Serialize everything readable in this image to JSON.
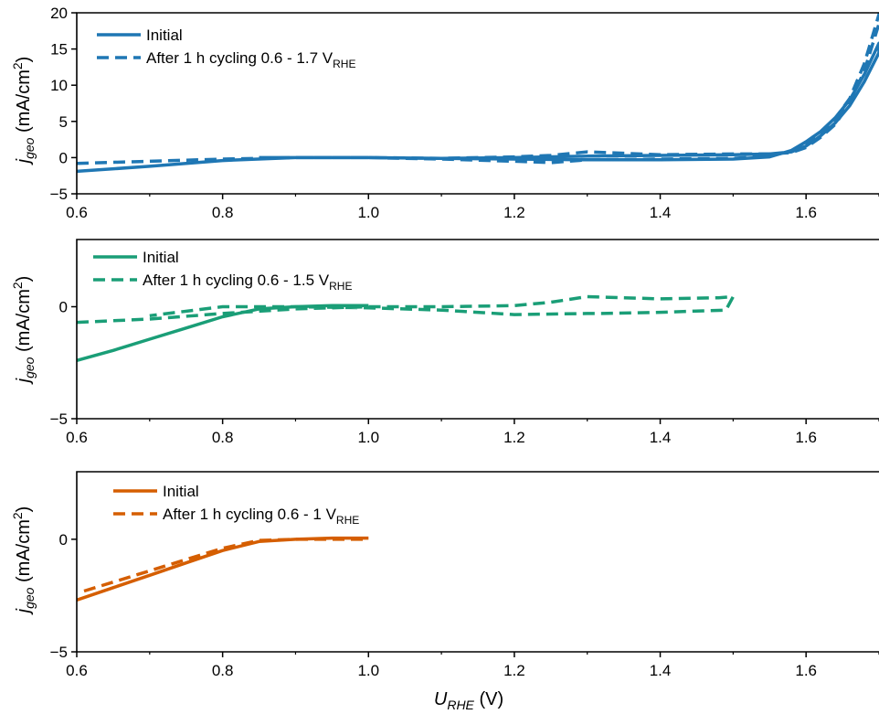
{
  "chart_data": [
    {
      "type": "line",
      "xlim": [
        0.6,
        1.7
      ],
      "ylim": [
        -5,
        20
      ],
      "x_ticks": [
        "0.6",
        "0.8",
        "1.0",
        "1.2",
        "1.4",
        "1.6"
      ],
      "y_ticks": [
        "20",
        "15",
        "10",
        "5",
        "0",
        "−5"
      ],
      "ylabel": {
        "main": "j",
        "sub": "geo",
        "unit": " (mA/cm",
        "sup": "2",
        "close": ")"
      },
      "legend_position": "top-left",
      "color": "#1f77b4",
      "series": [
        {
          "name": "Initial",
          "style": "solid",
          "x": [
            0.6,
            0.7,
            0.8,
            0.9,
            1.0,
            1.1,
            1.2,
            1.3,
            1.4,
            1.5,
            1.55,
            1.58,
            1.6,
            1.62,
            1.64,
            1.66,
            1.68,
            1.7,
            1.7,
            1.68,
            1.66,
            1.64,
            1.62,
            1.6,
            1.58,
            1.55,
            1.5,
            1.4,
            1.3,
            1.2,
            1.1,
            1.0,
            0.9,
            0.85
          ],
          "y": [
            -1.9,
            -1.2,
            -0.4,
            0.0,
            0.0,
            -0.1,
            -0.2,
            -0.3,
            -0.3,
            -0.2,
            0.1,
            1.0,
            2.2,
            3.6,
            5.5,
            8.0,
            11.5,
            15.8,
            14.5,
            10.5,
            7.2,
            4.8,
            3.0,
            1.6,
            0.8,
            0.5,
            0.4,
            0.3,
            0.2,
            0.0,
            -0.1,
            0.0,
            0.0,
            0.0
          ]
        },
        {
          "name": "After 1 h cycling 0.6 - 1.7 V",
          "name_sub": "RHE",
          "style": "dashed",
          "x": [
            0.6,
            0.7,
            0.8,
            0.9,
            1.0,
            1.1,
            1.2,
            1.25,
            1.3,
            1.4,
            1.5,
            1.55,
            1.58,
            1.6,
            1.62,
            1.64,
            1.66,
            1.68,
            1.7,
            1.7,
            1.68,
            1.66,
            1.64,
            1.62,
            1.6,
            1.58,
            1.55,
            1.5,
            1.4,
            1.3,
            1.25,
            1.2,
            1.1,
            1.0,
            0.9
          ],
          "y": [
            -0.8,
            -0.5,
            -0.2,
            0.0,
            0.0,
            -0.2,
            -0.5,
            -0.7,
            -0.3,
            -0.2,
            -0.1,
            0.2,
            0.9,
            2.0,
            3.4,
            5.4,
            8.2,
            13.0,
            19.8,
            18.5,
            12.0,
            7.6,
            4.6,
            2.8,
            1.4,
            0.7,
            0.5,
            0.5,
            0.4,
            0.8,
            0.3,
            0.1,
            -0.1,
            0.0,
            0.0
          ]
        }
      ]
    },
    {
      "type": "line",
      "xlim": [
        0.6,
        1.7
      ],
      "ylim": [
        -5,
        3
      ],
      "x_ticks": [
        "0.6",
        "0.8",
        "1.0",
        "1.2",
        "1.4",
        "1.6"
      ],
      "y_ticks": [
        "0",
        "−5"
      ],
      "ylabel": {
        "main": "j",
        "sub": "geo",
        "unit": " (mA/cm",
        "sup": "2",
        "close": ")"
      },
      "legend_position": "top-left",
      "color": "#1a9e77",
      "series": [
        {
          "name": "Initial",
          "style": "solid",
          "x": [
            0.6,
            0.65,
            0.7,
            0.75,
            0.8,
            0.85,
            0.9,
            0.95,
            1.0
          ],
          "y": [
            -2.4,
            -1.95,
            -1.45,
            -0.95,
            -0.45,
            -0.1,
            0.0,
            0.05,
            0.05
          ]
        },
        {
          "name": "After 1 h cycling 0.6 - 1.5 V",
          "name_sub": "RHE",
          "style": "dashed",
          "x": [
            0.6,
            0.7,
            0.8,
            0.9,
            1.0,
            1.1,
            1.2,
            1.25,
            1.3,
            1.4,
            1.48,
            1.5,
            1.49,
            1.4,
            1.32,
            1.3,
            1.2,
            1.1,
            1.0,
            0.9,
            0.8,
            0.7
          ],
          "y": [
            -0.7,
            -0.55,
            -0.3,
            -0.1,
            0.0,
            0.0,
            0.05,
            0.2,
            0.45,
            0.35,
            0.4,
            0.45,
            -0.15,
            -0.25,
            -0.3,
            -0.3,
            -0.35,
            -0.15,
            -0.05,
            0.0,
            0.0,
            -0.4
          ]
        }
      ]
    },
    {
      "type": "line",
      "xlim": [
        0.6,
        1.7
      ],
      "ylim": [
        -5,
        3
      ],
      "x_ticks": [
        "0.6",
        "0.8",
        "1.0",
        "1.2",
        "1.4",
        "1.6"
      ],
      "y_ticks": [
        "0",
        "−5"
      ],
      "ylabel": {
        "main": "j",
        "sub": "geo",
        "unit": " (mA/cm",
        "sup": "2",
        "close": ")"
      },
      "xlabel": {
        "main": "U",
        "sub": "RHE",
        "unit": " (V)"
      },
      "legend_position": "top-left",
      "color": "#d55e00",
      "series": [
        {
          "name": "Initial",
          "style": "solid",
          "x": [
            0.6,
            0.65,
            0.7,
            0.75,
            0.8,
            0.85,
            0.9,
            0.95,
            1.0
          ],
          "y": [
            -2.7,
            -2.15,
            -1.6,
            -1.05,
            -0.5,
            -0.1,
            0.0,
            0.05,
            0.05
          ]
        },
        {
          "name": "After 1 h cycling 0.6 - 1 V",
          "name_sub": "RHE",
          "style": "dashed",
          "x": [
            0.61,
            0.65,
            0.7,
            0.75,
            0.8,
            0.85,
            0.9,
            0.95,
            1.0
          ],
          "y": [
            -2.3,
            -1.9,
            -1.4,
            -0.9,
            -0.4,
            -0.05,
            0.0,
            0.0,
            0.0
          ]
        }
      ]
    }
  ]
}
